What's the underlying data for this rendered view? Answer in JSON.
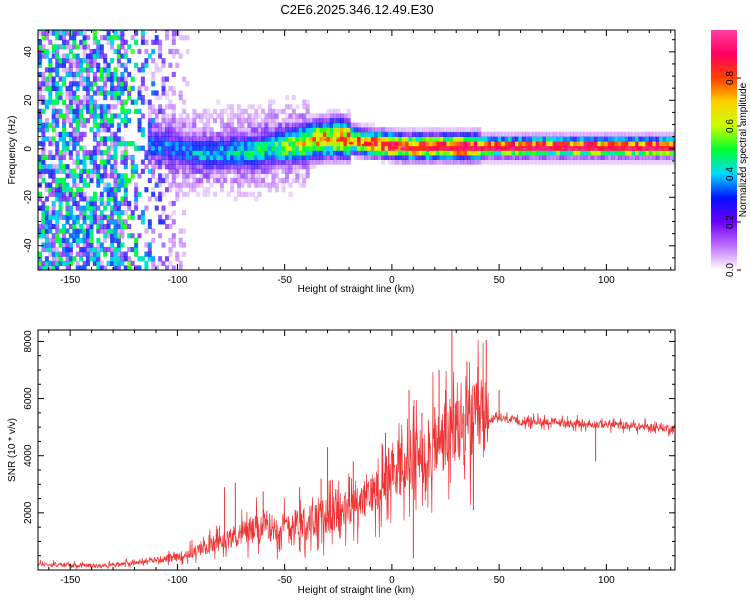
{
  "figure": {
    "title": "C2E6.2025.346.12.49.E30"
  },
  "chart_data": [
    {
      "type": "heatmap",
      "title": "C2E6.2025.346.12.49.E30",
      "xlabel": "Height of straight line (km)",
      "ylabel": "Frequency (Hz)",
      "xlim": [
        -165,
        132
      ],
      "ylim": [
        -50,
        49
      ],
      "xticks": [
        -150,
        -100,
        -50,
        0,
        50,
        100
      ],
      "yticks": [
        -40,
        -20,
        0,
        20,
        40
      ],
      "colorbar": {
        "label": "Normalized spectral amplitude",
        "range": [
          0,
          1
        ],
        "ticks": [
          0.0,
          0.2,
          0.4,
          0.6,
          0.8
        ],
        "tick_labels": [
          "0.0",
          "0.2",
          "0.4",
          "0.6",
          "0.8"
        ],
        "colors": [
          "#ffffff",
          "#c070ff",
          "#6a00ff",
          "#0010ff",
          "#00d8ff",
          "#00ff30",
          "#c8ff00",
          "#ffd000",
          "#ff4000",
          "#ff0060",
          "#ff40a0"
        ]
      },
      "ridge": {
        "x": [
          -115,
          -105,
          -95,
          -85,
          -75,
          -65,
          -55,
          -45,
          -35,
          -25,
          -15,
          -5,
          5,
          15,
          30,
          50,
          70,
          90,
          110,
          132
        ],
        "frequency_hz": [
          1,
          0,
          -2,
          -3,
          -2,
          -2,
          0,
          1,
          3,
          4,
          2,
          1,
          0,
          0,
          0,
          0,
          0,
          0,
          0,
          0
        ],
        "peak_amplitude": [
          0.35,
          0.35,
          0.38,
          0.4,
          0.42,
          0.45,
          0.5,
          0.62,
          0.7,
          0.75,
          0.8,
          0.85,
          0.88,
          0.9,
          0.9,
          0.92,
          0.92,
          0.92,
          0.92,
          0.92
        ]
      },
      "noise_region_x": [
        -165,
        -95
      ]
    },
    {
      "type": "line",
      "xlabel": "Height of straight line (km)",
      "ylabel": "SNR (10 * v/v)",
      "xlim": [
        -165,
        132
      ],
      "ylim": [
        0,
        8400
      ],
      "xticks": [
        -150,
        -100,
        -50,
        0,
        50,
        100
      ],
      "yticks": [
        2000,
        4000,
        6000,
        8000
      ],
      "color": "#ee3333",
      "trend": {
        "x": [
          -165,
          -140,
          -120,
          -100,
          -90,
          -80,
          -70,
          -60,
          -50,
          -40,
          -30,
          -20,
          -10,
          0,
          10,
          20,
          30,
          40,
          50,
          60,
          70,
          80,
          90,
          100,
          110,
          120,
          132
        ],
        "y": [
          200,
          150,
          250,
          450,
          700,
          1000,
          1300,
          1500,
          1500,
          1700,
          1900,
          2100,
          2600,
          3400,
          3800,
          4300,
          4900,
          5200,
          5300,
          5200,
          5200,
          5150,
          5100,
          5100,
          5050,
          5000,
          4950
        ]
      },
      "spikes": [
        {
          "x": -78,
          "y": 2900
        },
        {
          "x": -73,
          "y": 3050
        },
        {
          "x": -60,
          "y": 2750
        },
        {
          "x": -43,
          "y": 2900
        },
        {
          "x": -33,
          "y": 3200
        },
        {
          "x": -30,
          "y": 4300
        },
        {
          "x": -18,
          "y": 3800
        },
        {
          "x": -3,
          "y": 4800
        },
        {
          "x": 8,
          "y": 6300
        },
        {
          "x": 10,
          "y": 400
        },
        {
          "x": 14,
          "y": 5500
        },
        {
          "x": 20,
          "y": 5700
        },
        {
          "x": 22,
          "y": 7000
        },
        {
          "x": 25,
          "y": 6300
        },
        {
          "x": 28,
          "y": 8400
        },
        {
          "x": 30,
          "y": 5900
        },
        {
          "x": 35,
          "y": 7300
        },
        {
          "x": 38,
          "y": 2100
        },
        {
          "x": 40,
          "y": 7100
        },
        {
          "x": 44,
          "y": 8050
        },
        {
          "x": 50,
          "y": 6300
        },
        {
          "x": 95,
          "y": 3800
        }
      ]
    }
  ]
}
